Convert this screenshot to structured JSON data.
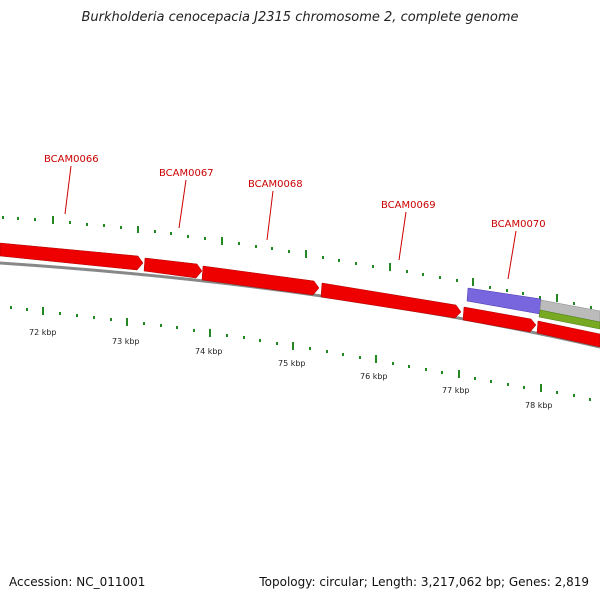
{
  "title": "Burkholderia cenocepacia J2315 chromosome 2, complete genome",
  "footer": {
    "accession": "Accession: NC_011001",
    "summary": "Topology: circular; Length: 3,217,062 bp; Genes: 2,819"
  },
  "colors": {
    "gene_forward": "#ee0000",
    "gene_other": "#7766dd",
    "gene_grey": "#bbbbbb",
    "gene_green": "#77aa22",
    "backbone": "#888888",
    "tick": "#228822",
    "label": "#cc0000"
  },
  "genes": [
    {
      "label": "BCAM0066",
      "row": "upper",
      "color": "red",
      "strand": "forward"
    },
    {
      "label": "BCAM0067",
      "row": "upper",
      "color": "red",
      "strand": "forward"
    },
    {
      "label": "BCAM0068",
      "row": "upper",
      "color": "red",
      "strand": "forward"
    },
    {
      "label": "BCAM0069",
      "row": "upper",
      "color": "red",
      "strand": "forward"
    },
    {
      "label": "BCAM0070",
      "row": "upper",
      "color": "purple",
      "strand": "forward"
    }
  ],
  "scale": {
    "unit": "kbp",
    "labels": [
      "72 kbp",
      "73 kbp",
      "74 kbp",
      "75 kbp",
      "76 kbp",
      "77 kbp",
      "78 kbp"
    ]
  }
}
